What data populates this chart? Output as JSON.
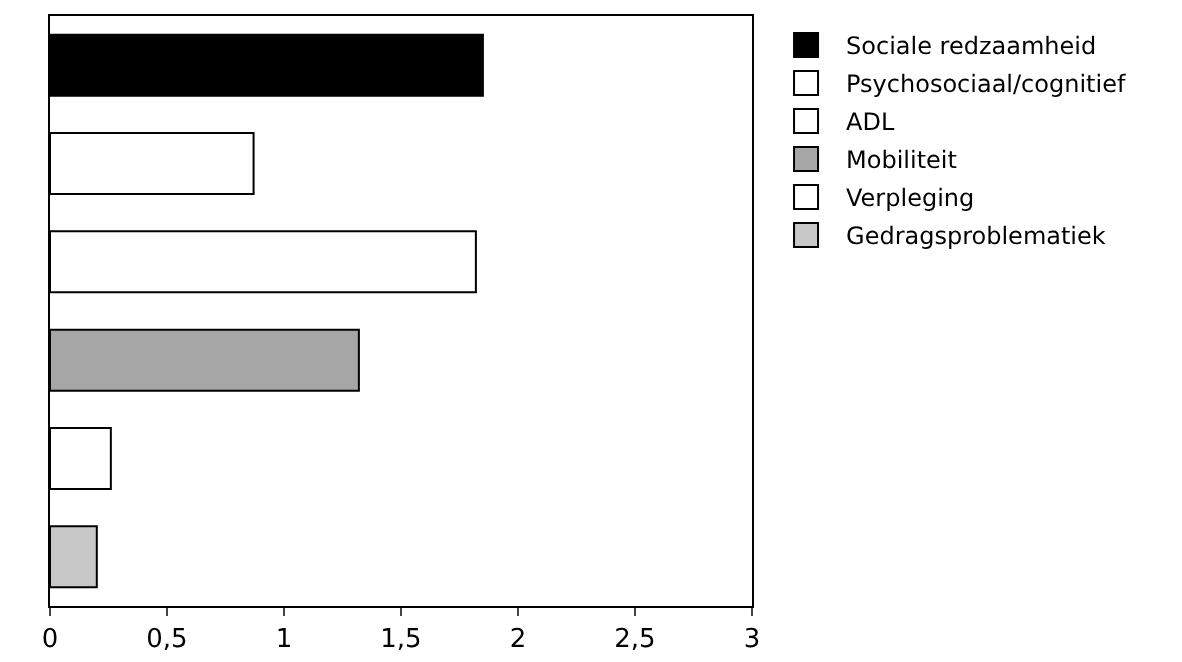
{
  "chart_data": {
    "type": "bar",
    "orientation": "horizontal",
    "categories": [
      null,
      null,
      null,
      null,
      null,
      null
    ],
    "series": [
      {
        "name": "Sociale redzaamheid",
        "color": "#000000",
        "values": [
          1.85,
          null,
          null,
          null,
          null,
          null
        ]
      },
      {
        "name": "Psychosociaal/cognitief",
        "color": "#ffffff",
        "values": [
          null,
          0.87,
          null,
          null,
          null,
          null
        ]
      },
      {
        "name": "ADL",
        "color": "#ffffff",
        "values": [
          null,
          null,
          1.82,
          null,
          null,
          null
        ]
      },
      {
        "name": "Mobiliteit",
        "color": "#a6a6a6",
        "values": [
          null,
          null,
          null,
          1.32,
          null,
          null
        ]
      },
      {
        "name": "Verpleging",
        "color": "#ffffff",
        "values": [
          null,
          null,
          null,
          null,
          0.26,
          null
        ]
      },
      {
        "name": "Gedragsproblematiek",
        "color": "#c8c8c8",
        "values": [
          null,
          null,
          null,
          null,
          null,
          0.2
        ]
      }
    ],
    "xlim": [
      0,
      3
    ],
    "xticks": [
      0,
      "0,5",
      1,
      "1,5",
      2,
      "2,5",
      3
    ],
    "grid": false,
    "legend": "right"
  }
}
